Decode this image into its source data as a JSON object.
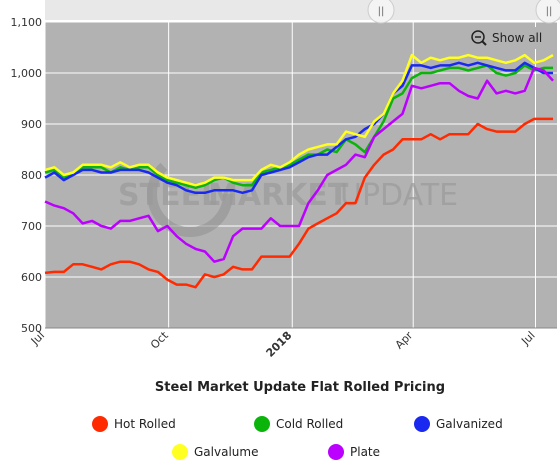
{
  "chart_data": {
    "type": "line",
    "title": "Steel Market Update Flat Rolled Pricing",
    "xlabel": "",
    "ylabel": "",
    "ylim": [
      500,
      1100
    ],
    "yticks": [
      "500",
      "600",
      "700",
      "800",
      "900",
      "1,000",
      "1,100"
    ],
    "xtick_labels": [
      "Jul",
      "Oct",
      "2018",
      "Apr",
      "Jul"
    ],
    "x": [
      "2017-07-01",
      "2017-07-08",
      "2017-07-15",
      "2017-07-22",
      "2017-07-29",
      "2017-08-05",
      "2017-08-12",
      "2017-08-19",
      "2017-08-26",
      "2017-09-02",
      "2017-09-09",
      "2017-09-16",
      "2017-09-23",
      "2017-09-30",
      "2017-10-07",
      "2017-10-14",
      "2017-10-21",
      "2017-10-28",
      "2017-11-04",
      "2017-11-11",
      "2017-11-18",
      "2017-11-25",
      "2017-12-02",
      "2017-12-09",
      "2017-12-16",
      "2017-12-23",
      "2017-12-30",
      "2018-01-06",
      "2018-01-13",
      "2018-01-20",
      "2018-01-27",
      "2018-02-03",
      "2018-02-10",
      "2018-02-17",
      "2018-02-24",
      "2018-03-03",
      "2018-03-10",
      "2018-03-17",
      "2018-03-24",
      "2018-03-31",
      "2018-04-07",
      "2018-04-14",
      "2018-04-21",
      "2018-04-28",
      "2018-05-05",
      "2018-05-12",
      "2018-05-19",
      "2018-05-26",
      "2018-06-02",
      "2018-06-09",
      "2018-06-16",
      "2018-06-23",
      "2018-06-30",
      "2018-07-07",
      "2018-07-14"
    ],
    "grid": true,
    "series": [
      {
        "name": "Hot Rolled",
        "color": "#ff2a00",
        "values": [
          608,
          610,
          610,
          625,
          625,
          620,
          615,
          625,
          630,
          630,
          625,
          615,
          610,
          595,
          585,
          585,
          580,
          605,
          600,
          605,
          620,
          615,
          615,
          640,
          640,
          640,
          640,
          665,
          695,
          705,
          715,
          725,
          745,
          745,
          795,
          820,
          840,
          850,
          870,
          870,
          870,
          880,
          870,
          880,
          880,
          880,
          900,
          890,
          885,
          885,
          885,
          900,
          910,
          910,
          910
        ]
      },
      {
        "name": "Cold Rolled",
        "color": "#0ab40a",
        "values": [
          805,
          810,
          795,
          800,
          815,
          815,
          815,
          805,
          815,
          810,
          815,
          815,
          800,
          790,
          785,
          780,
          775,
          780,
          790,
          795,
          785,
          780,
          780,
          805,
          810,
          815,
          820,
          830,
          840,
          840,
          850,
          845,
          870,
          860,
          845,
          875,
          905,
          950,
          960,
          990,
          1000,
          1000,
          1005,
          1010,
          1010,
          1005,
          1010,
          1015,
          1000,
          995,
          1000,
          1015,
          1005,
          1010,
          1010
        ]
      },
      {
        "name": "Galvanized",
        "color": "#1a29f0",
        "values": [
          795,
          805,
          790,
          800,
          810,
          810,
          805,
          805,
          810,
          810,
          810,
          805,
          795,
          785,
          780,
          770,
          765,
          765,
          770,
          770,
          770,
          765,
          770,
          800,
          805,
          810,
          815,
          825,
          835,
          840,
          840,
          855,
          870,
          875,
          890,
          900,
          920,
          960,
          975,
          1015,
          1015,
          1010,
          1015,
          1015,
          1020,
          1015,
          1020,
          1015,
          1010,
          1005,
          1005,
          1020,
          1010,
          1000,
          1000
        ]
      },
      {
        "name": "Galvalume",
        "color": "#ffff22",
        "values": [
          810,
          815,
          800,
          805,
          820,
          820,
          820,
          815,
          825,
          815,
          820,
          820,
          805,
          795,
          790,
          785,
          780,
          785,
          795,
          795,
          790,
          790,
          790,
          810,
          820,
          815,
          825,
          840,
          850,
          855,
          860,
          860,
          885,
          880,
          875,
          905,
          920,
          960,
          985,
          1035,
          1020,
          1030,
          1025,
          1030,
          1030,
          1035,
          1030,
          1030,
          1025,
          1020,
          1025,
          1035,
          1020,
          1025,
          1035
        ]
      },
      {
        "name": "Plate",
        "color": "#bb00ff",
        "values": [
          748,
          740,
          735,
          725,
          705,
          710,
          700,
          695,
          710,
          710,
          715,
          720,
          690,
          700,
          680,
          665,
          655,
          650,
          630,
          635,
          680,
          695,
          695,
          695,
          715,
          700,
          700,
          700,
          745,
          770,
          800,
          810,
          820,
          840,
          835,
          875,
          890,
          905,
          920,
          975,
          970,
          975,
          980,
          980,
          965,
          955,
          950,
          985,
          960,
          965,
          960,
          965,
          1010,
          1005,
          985
        ]
      }
    ]
  },
  "toolbar": {
    "zoom_label": "Show all",
    "zoom_icon": "zoom-out-icon",
    "scroll_handle_left": "||",
    "scroll_handle_right": "||"
  },
  "watermark": {
    "word1": "STEEL",
    "word2": "MARKET",
    "word3": "UPDATE"
  },
  "colors": {
    "plot_bg": "#b2b2b2",
    "grid": "#ffffff",
    "handle": "#f0f0f0"
  }
}
